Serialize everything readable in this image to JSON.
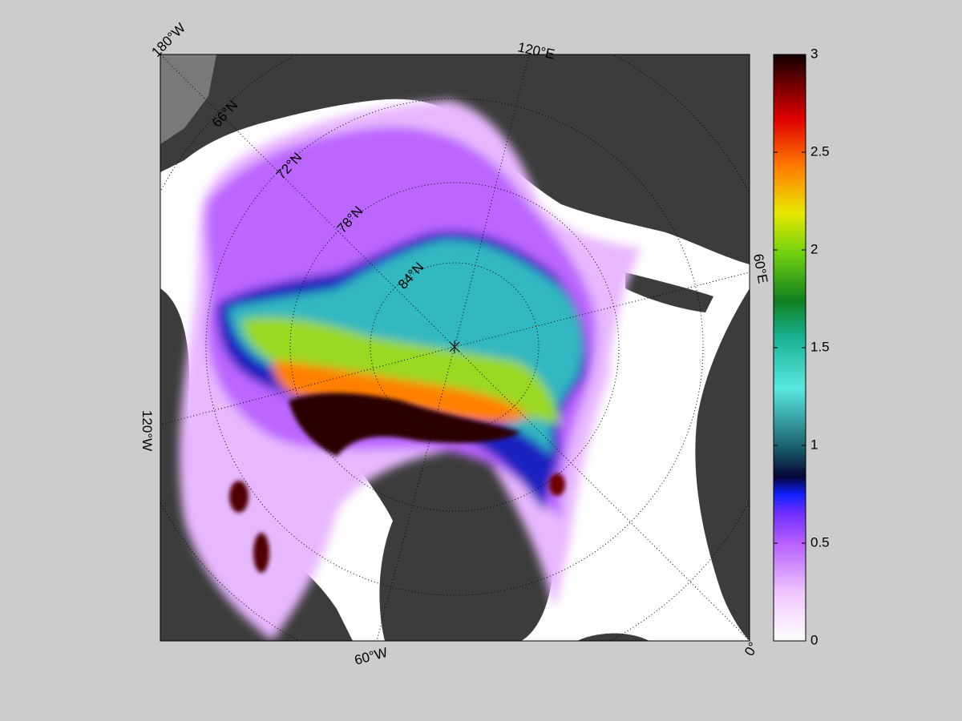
{
  "map": {
    "longitude_labels": [
      "180°W",
      "120°E",
      "60°E",
      "0°",
      "60°W",
      "120°W"
    ],
    "latitude_labels": [
      "66°N",
      "72°N",
      "78°N",
      "84°N"
    ],
    "colorbar": {
      "lim": [
        0,
        3
      ],
      "ticks": [
        0,
        0.5,
        1,
        1.5,
        2,
        2.5,
        3
      ]
    }
  }
}
